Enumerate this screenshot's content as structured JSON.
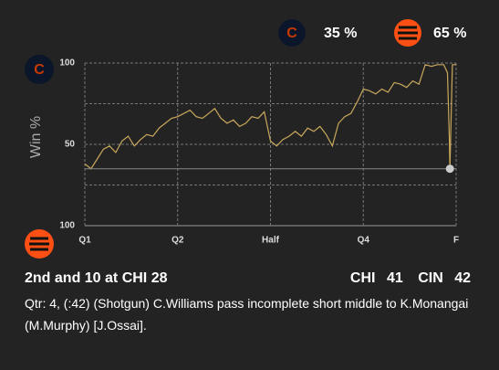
{
  "win_probability": [
    {
      "value": 35,
      "label": "35 %"
    },
    {
      "value": 65,
      "label": "65 %"
    }
  ],
  "chart_data": {
    "type": "line",
    "y_label": "Win %",
    "xlim": [
      0,
      60
    ],
    "xticks": [
      {
        "value": 0,
        "label": "Q1"
      },
      {
        "value": 15,
        "label": "Q2"
      },
      {
        "value": 30,
        "label": "Half"
      },
      {
        "value": 45,
        "label": "Q4"
      },
      {
        "value": 60,
        "label": "F"
      }
    ],
    "ylim": [
      0,
      100
    ],
    "yticks": [
      {
        "value": 0,
        "label": "100"
      },
      {
        "value": 50,
        "label": "50"
      },
      {
        "value": 100,
        "label": "100"
      }
    ],
    "minor_yticks": [
      25,
      75
    ],
    "grid": true,
    "series": [
      {
        "color": "#c9a85c",
        "x": [
          0,
          1,
          2,
          3,
          4,
          5,
          6,
          7,
          8,
          9,
          10,
          11,
          12,
          13,
          14,
          15,
          16,
          17,
          18,
          19,
          20,
          21,
          22,
          23,
          24,
          25,
          26,
          27,
          28,
          29,
          30,
          31,
          32,
          33,
          34,
          35,
          36,
          37,
          38,
          39,
          40,
          41,
          42,
          43,
          44,
          45,
          46,
          47,
          48,
          49,
          50,
          51,
          52,
          53,
          54,
          55,
          56,
          57,
          58,
          58.6,
          58.9,
          59,
          59.4,
          60
        ],
        "values": [
          38,
          35,
          41,
          47,
          49,
          45,
          52,
          55,
          49,
          53,
          56,
          55,
          60,
          63,
          66,
          67,
          69,
          71,
          67,
          66,
          69,
          72,
          66,
          63,
          65,
          61,
          63,
          67,
          66,
          70,
          52,
          49,
          53,
          55,
          58,
          55,
          60,
          58,
          61,
          56,
          49,
          63,
          67,
          69,
          76,
          84,
          83,
          81,
          84,
          82,
          88,
          87,
          85,
          89,
          87,
          99,
          98,
          99,
          99,
          94,
          55,
          35,
          99,
          99
        ]
      }
    ],
    "current": {
      "x": 59,
      "value": 35
    }
  },
  "play": {
    "situation": "2nd and 10 at CHI 28",
    "home": "CHI",
    "home_points": 41,
    "away": "CIN",
    "away_points": 42,
    "description": "Qtr: 4, (:42) (Shotgun) C.Williams pass incomplete short middle to K.Monangai (M.Murphy) [J.Ossai]."
  }
}
